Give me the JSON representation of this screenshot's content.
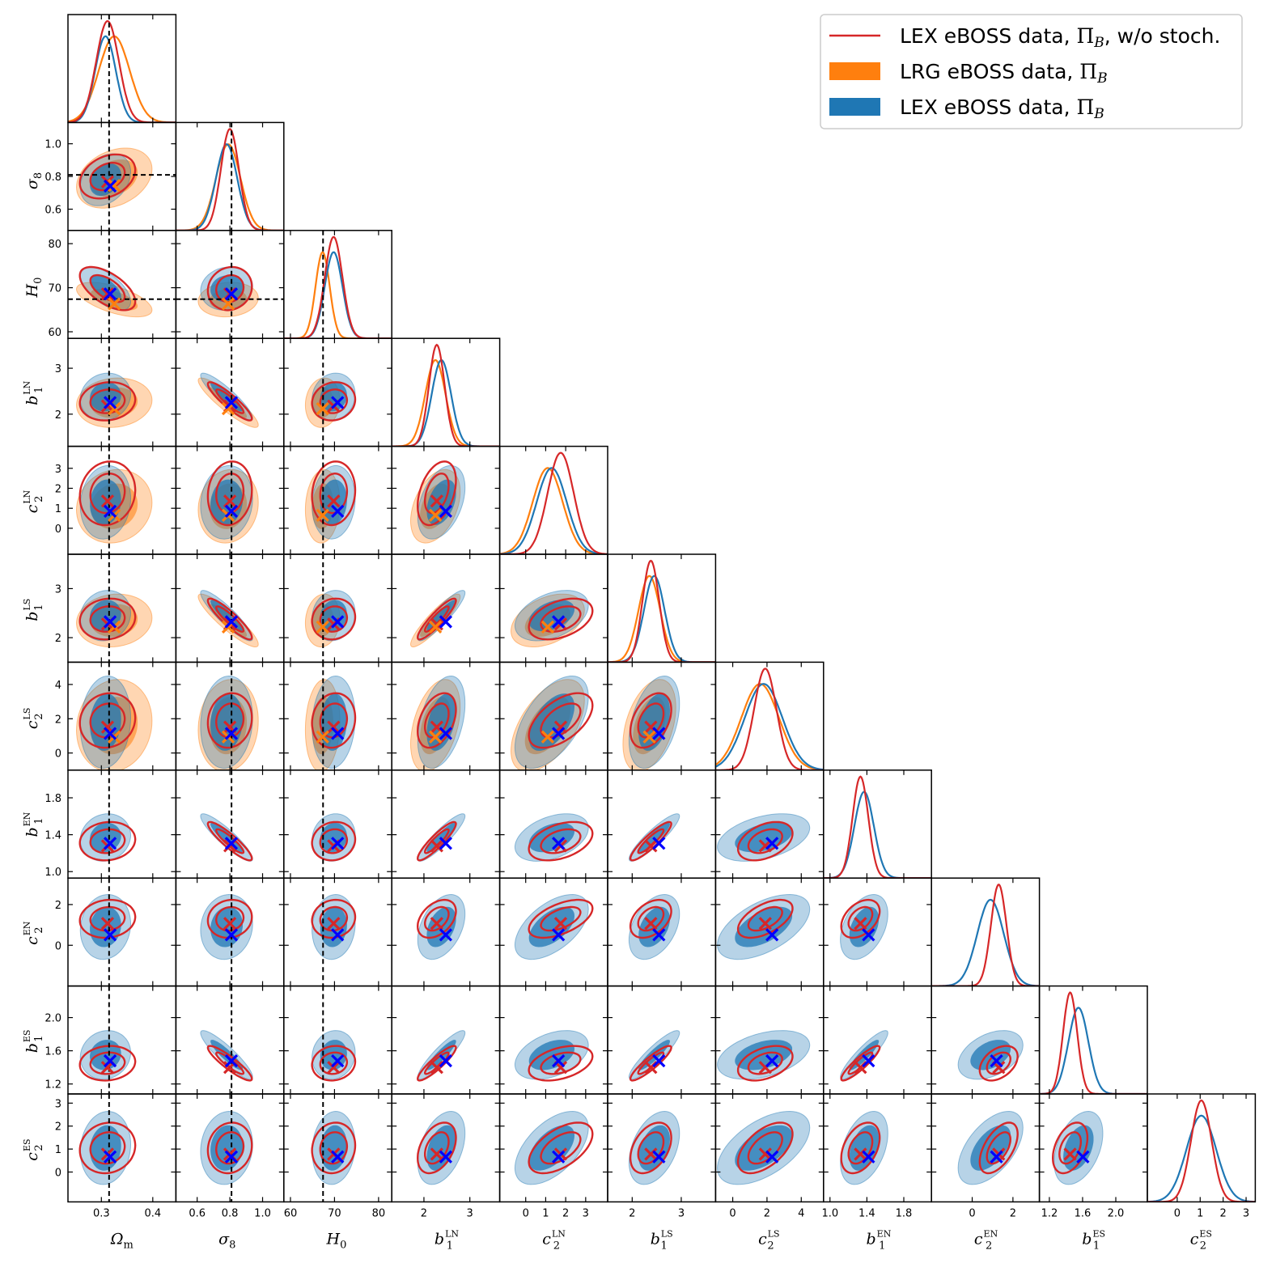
{
  "chart_data": {
    "type": "corner",
    "description_params": [
      "Ω_m",
      "σ_8",
      "H_0",
      "b_1^LN",
      "c_2^LN",
      "b_1^LS",
      "c_2^LS",
      "b_1^EN",
      "c_2^EN",
      "b_1^ES",
      "c_2^ES"
    ],
    "params": [
      {
        "sym": "Ω",
        "sub": "m",
        "sup": "",
        "range": [
          0.235,
          0.445
        ],
        "ticks": [
          0.3,
          0.4
        ],
        "ticklabels": [
          "0.3",
          "0.4"
        ],
        "truth": 0.315,
        "means": {
          "red": 0.312,
          "orange": 0.325,
          "blue": 0.308
        },
        "sd": {
          "red": 0.022,
          "orange": 0.03,
          "blue": 0.02
        }
      },
      {
        "sym": "σ",
        "sub": "8",
        "sup": "",
        "range": [
          0.47,
          1.13
        ],
        "ticks": [
          0.6,
          0.8,
          1.0
        ],
        "ticklabels": [
          "0.6",
          "0.8",
          "1.0"
        ],
        "truth": 0.81,
        "means": {
          "red": 0.8,
          "orange": 0.79,
          "blue": 0.78
        },
        "sd": {
          "red": 0.055,
          "orange": 0.075,
          "blue": 0.065
        }
      },
      {
        "sym": "H",
        "sub": "0",
        "sup": "",
        "range": [
          58.5,
          83.0
        ],
        "ticks": [
          60,
          70,
          80
        ],
        "ticklabels": [
          "60",
          "70",
          "80"
        ],
        "truth": 67.4,
        "means": {
          "red": 69.8,
          "orange": 67.3,
          "blue": 69.8
        },
        "sd": {
          "red": 2.0,
          "orange": 1.6,
          "blue": 2.0
        }
      },
      {
        "sym": "b",
        "sub": "1",
        "sup": "LN",
        "range": [
          1.3,
          3.65
        ],
        "ticks": [
          2,
          3
        ],
        "ticklabels": [
          "2",
          "3"
        ],
        "truth": null,
        "means": {
          "red": 2.28,
          "orange": 2.25,
          "blue": 2.38
        },
        "sd": {
          "red": 0.17,
          "orange": 0.22,
          "blue": 0.21
        }
      },
      {
        "sym": "c",
        "sub": "2",
        "sup": "LN",
        "range": [
          -1.3,
          4.1
        ],
        "ticks": [
          0,
          1,
          2,
          3
        ],
        "ticklabels": [
          "0",
          "1",
          "2",
          "3"
        ],
        "truth": null,
        "means": {
          "red": 1.75,
          "orange": 1.1,
          "blue": 1.3
        },
        "sd": {
          "red": 0.65,
          "orange": 0.75,
          "blue": 0.75
        }
      },
      {
        "sym": "b",
        "sub": "1",
        "sup": "LS",
        "range": [
          1.5,
          3.7
        ],
        "ticks": [
          2,
          3
        ],
        "ticklabels": [
          "2",
          "3"
        ],
        "truth": null,
        "means": {
          "red": 2.38,
          "orange": 2.35,
          "blue": 2.45
        },
        "sd": {
          "red": 0.17,
          "orange": 0.22,
          "blue": 0.21
        }
      },
      {
        "sym": "c",
        "sub": "2",
        "sup": "LS",
        "range": [
          -1.0,
          5.3
        ],
        "ticks": [
          0,
          2,
          4
        ],
        "ticklabels": [
          "0",
          "2",
          "4"
        ],
        "truth": null,
        "means": {
          "red": 1.9,
          "orange": 1.6,
          "blue": 1.8
        },
        "sd": {
          "red": 0.65,
          "orange": 1.1,
          "blue": 1.1
        }
      },
      {
        "sym": "b",
        "sub": "1",
        "sup": "EN",
        "range": [
          0.93,
          2.1
        ],
        "ticks": [
          1.0,
          1.4,
          1.8
        ],
        "ticklabels": [
          "1.0",
          "1.4",
          "1.8"
        ],
        "truth": null,
        "means": {
          "red": 1.33,
          "orange": null,
          "blue": 1.37
        },
        "sd": {
          "red": 0.085,
          "orange": null,
          "blue": 0.105
        }
      },
      {
        "sym": "c",
        "sub": "2",
        "sup": "EN",
        "range": [
          -2.0,
          3.3
        ],
        "ticks": [
          0,
          2
        ],
        "ticklabels": [
          "0",
          "2"
        ],
        "truth": null,
        "means": {
          "red": 1.3,
          "orange": null,
          "blue": 0.9
        },
        "sd": {
          "red": 0.38,
          "orange": null,
          "blue": 0.65
        }
      },
      {
        "sym": "b",
        "sub": "1",
        "sup": "ES",
        "range": [
          1.08,
          2.38
        ],
        "ticks": [
          1.2,
          1.6,
          2.0
        ],
        "ticklabels": [
          "1.2",
          "1.6",
          "2.0"
        ],
        "truth": null,
        "means": {
          "red": 1.45,
          "orange": null,
          "blue": 1.55
        },
        "sd": {
          "red": 0.085,
          "orange": null,
          "blue": 0.12
        }
      },
      {
        "sym": "c",
        "sub": "2",
        "sup": "ES",
        "range": [
          -1.3,
          3.4
        ],
        "ticks": [
          0,
          1,
          2,
          3
        ],
        "ticklabels": [
          "0",
          "1",
          "2",
          "3"
        ],
        "truth": null,
        "means": {
          "red": 1.05,
          "orange": null,
          "blue": 1.05
        },
        "sd": {
          "red": 0.45,
          "orange": null,
          "blue": 0.65
        }
      }
    ],
    "series": [
      {
        "key": "red",
        "name": "LEX eBOSS data, Π_B, w/o stoch.",
        "color": "#d62728",
        "style": "line",
        "n_params": 11
      },
      {
        "key": "orange",
        "name": "LRG eBOSS data, Π_B",
        "color": "#ff7f0e",
        "style": "filled",
        "n_params": 7
      },
      {
        "key": "blue",
        "name": "LEX eBOSS data, Π_B",
        "color": "#1f77b4",
        "style": "filled",
        "n_params": 11
      }
    ],
    "truth_line_style": "black dashed",
    "marker": "x"
  },
  "legend": {
    "entries": [
      {
        "text": "LEX eBOSS data, ",
        "math": "Π",
        "sub": "B",
        "tail": ", w/o stoch."
      },
      {
        "text": "LRG eBOSS data, ",
        "math": "Π",
        "sub": "B",
        "tail": ""
      },
      {
        "text": "LEX eBOSS data, ",
        "math": "Π",
        "sub": "B",
        "tail": ""
      }
    ]
  },
  "colors": {
    "red": "#d62728",
    "orange": "#ff7f0e",
    "blue": "#1f77b4"
  }
}
